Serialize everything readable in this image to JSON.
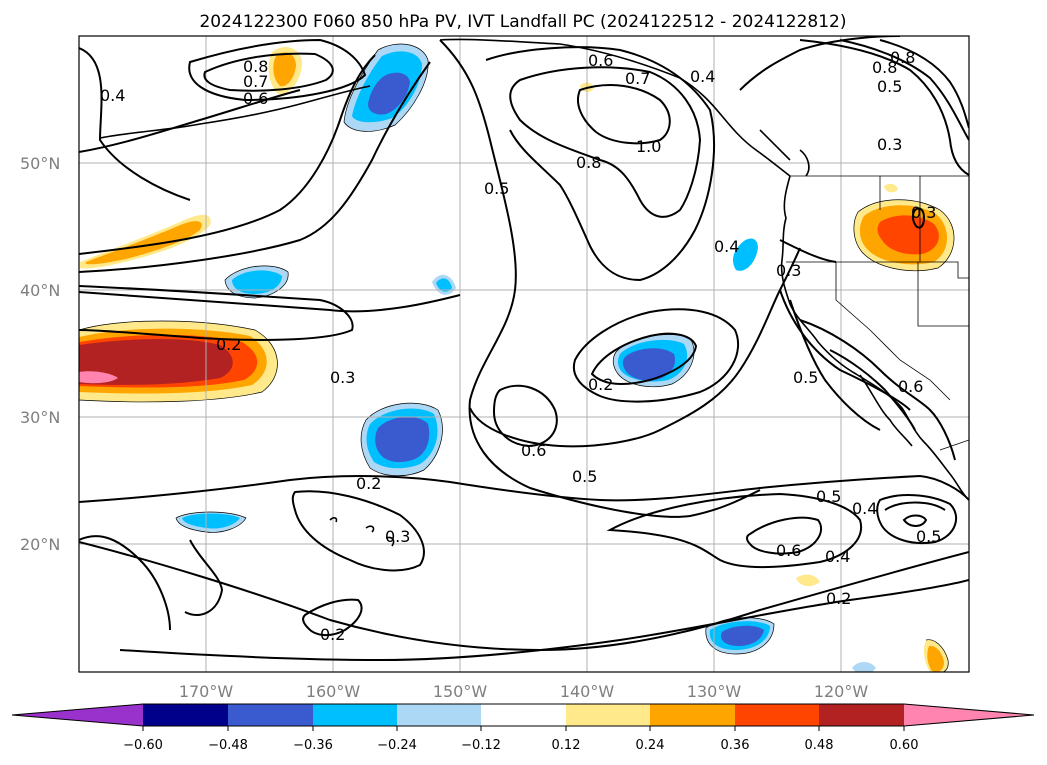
{
  "title": "2024122300 F060 850 hPa PV, IVT Landfall PC (2024122512 - 2024122812)",
  "lat_labels": [
    "50°N",
    "40°N",
    "30°N",
    "20°N"
  ],
  "lon_labels": [
    "170°W",
    "160°W",
    "150°W",
    "140°W",
    "130°W",
    "120°W"
  ],
  "contour_labels": [
    "0.4",
    "0.8",
    "0.7",
    "0.6",
    "0.6",
    "0.7",
    "0.4",
    "1.0",
    "0.8",
    "0.5",
    "0.8",
    "0.8",
    "0.5",
    "0.3",
    "0.4",
    "0.3",
    "0.2",
    "0.3",
    "0.2",
    "0.6",
    "0.5",
    "0.2",
    "0.3",
    "0.5",
    "0.6",
    "0.5",
    "0.4",
    "0.6",
    "0.4",
    "0.5",
    "0.2",
    "0.2",
    "0.3"
  ],
  "colorbar": {
    "ticks": [
      "−0.60",
      "−0.48",
      "−0.36",
      "−0.24",
      "−0.12",
      "0.12",
      "0.24",
      "0.36",
      "0.48",
      "0.60"
    ],
    "colors": [
      "#9932cc",
      "#00008b",
      "#3a5bd0",
      "#00bfff",
      "#add8f5",
      "#ffffff",
      "#ffe98a",
      "#ffa500",
      "#ff4500",
      "#b22222",
      "#ff85b0"
    ]
  }
}
